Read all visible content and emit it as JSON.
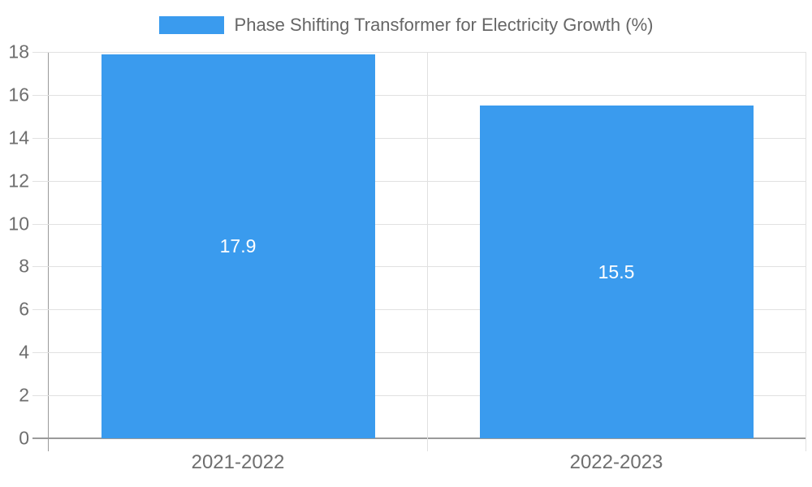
{
  "chart_data": {
    "type": "bar",
    "title": "",
    "legend_entries": [
      "Phase Shifting Transformer for Electricity Growth (%)"
    ],
    "legend_position": "top",
    "categories": [
      "2021-2022",
      "2022-2023"
    ],
    "values": [
      17.9,
      15.5
    ],
    "value_labels": [
      "17.9",
      "15.5"
    ],
    "ylabel": "",
    "xlabel": "",
    "ylim": [
      0,
      18
    ],
    "yticks": [
      0,
      2,
      4,
      6,
      8,
      10,
      12,
      14,
      16,
      18
    ],
    "grid": true,
    "colors": {
      "bar": "#3a9bee",
      "grid": "#e1e1e1",
      "axis": "#9a9a9a",
      "tick_text": "#6e6e6e",
      "value_text": "#ffffff",
      "legend_text": "#666666",
      "background": "#ffffff"
    }
  }
}
